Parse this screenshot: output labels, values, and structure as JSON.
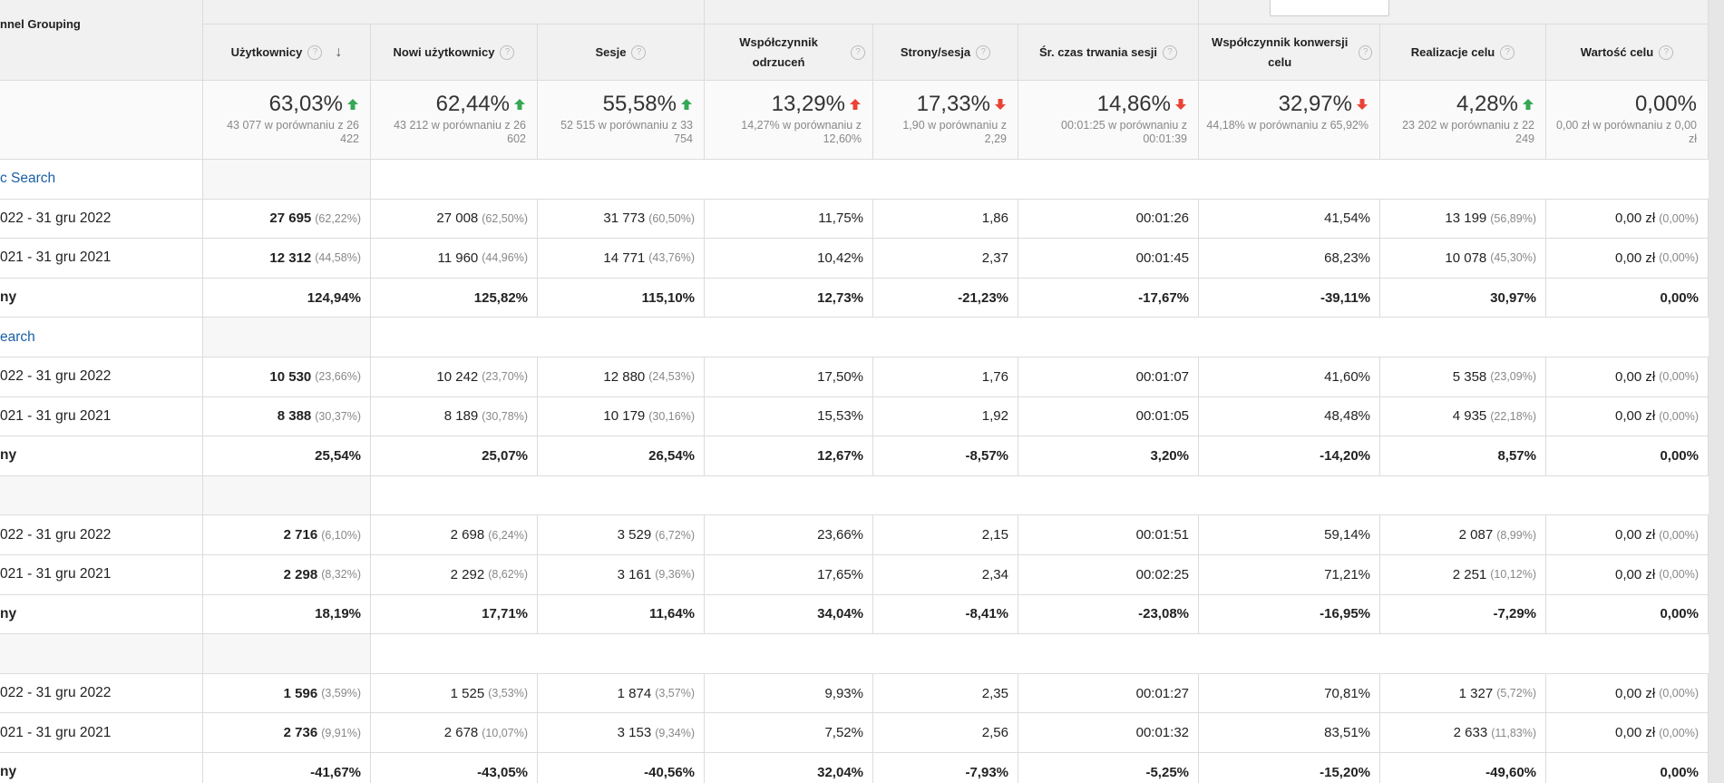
{
  "table": {
    "first_header": "nnel Grouping",
    "headers": [
      "Użytkownicy",
      "Nowi użytkownicy",
      "Sesje",
      "Współczynnik odrzuceń",
      "Strony/sesja",
      "Śr. czas trwania sesji",
      "Współczynnik konwersji celu",
      "Realizacje celu",
      "Wartość celu"
    ],
    "summary": [
      {
        "main": "63,03%",
        "arrow": "up",
        "arrow_color": "#34a853",
        "sub": "43 077 w porównaniu z 26 422"
      },
      {
        "main": "62,44%",
        "arrow": "up",
        "arrow_color": "#34a853",
        "sub": "43 212 w porównaniu z 26 602"
      },
      {
        "main": "55,58%",
        "arrow": "up",
        "arrow_color": "#34a853",
        "sub": "52 515 w porównaniu z 33 754"
      },
      {
        "main": "13,29%",
        "arrow": "up",
        "arrow_color": "#ea4335",
        "sub": "14,27% w porównaniu z 12,60%"
      },
      {
        "main": "17,33%",
        "arrow": "down",
        "arrow_color": "#ea4335",
        "sub": "1,90 w porównaniu z 2,29"
      },
      {
        "main": "14,86%",
        "arrow": "down",
        "arrow_color": "#ea4335",
        "sub": "00:01:25 w porównaniu z 00:01:39"
      },
      {
        "main": "32,97%",
        "arrow": "down",
        "arrow_color": "#ea4335",
        "sub": "44,18% w porównaniu z 65,92%"
      },
      {
        "main": "4,28%",
        "arrow": "up",
        "arrow_color": "#34a853",
        "sub": "23 202 w porównaniu z 22 249"
      },
      {
        "main": "0,00%",
        "sub": "0,00 zł w porównaniu z 0,00 zł"
      }
    ],
    "rows": [
      {
        "group": "c Search"
      },
      {
        "label": "022 - 31 gru 2022",
        "cells": [
          [
            "27 695",
            "(62,22%)"
          ],
          [
            "27 008",
            "(62,50%)"
          ],
          [
            "31 773",
            "(60,50%)"
          ],
          "11,75%",
          "1,86",
          "00:01:26",
          "41,54%",
          [
            "13 199",
            "(56,89%)"
          ],
          [
            "0,00 zł",
            "(0,00%)"
          ]
        ]
      },
      {
        "label": "021 - 31 gru 2021",
        "cells": [
          [
            "12 312",
            "(44,58%)"
          ],
          [
            "11 960",
            "(44,96%)"
          ],
          [
            "14 771",
            "(43,76%)"
          ],
          "10,42%",
          "2,37",
          "00:01:45",
          "68,23%",
          [
            "10 078",
            "(45,30%)"
          ],
          [
            "0,00 zł",
            "(0,00%)"
          ]
        ]
      },
      {
        "label": "ny",
        "bold": true,
        "cells": [
          "124,94%",
          "125,82%",
          "115,10%",
          "12,73%",
          "-21,23%",
          "-17,67%",
          "-39,11%",
          "30,97%",
          "0,00%"
        ]
      },
      {
        "group": "earch"
      },
      {
        "label": "022 - 31 gru 2022",
        "cells": [
          [
            "10 530",
            "(23,66%)"
          ],
          [
            "10 242",
            "(23,70%)"
          ],
          [
            "12 880",
            "(24,53%)"
          ],
          "17,50%",
          "1,76",
          "00:01:07",
          "41,60%",
          [
            "5 358",
            "(23,09%)"
          ],
          [
            "0,00 zł",
            "(0,00%)"
          ]
        ]
      },
      {
        "label": "021 - 31 gru 2021",
        "cells": [
          [
            "8 388",
            "(30,37%)"
          ],
          [
            "8 189",
            "(30,78%)"
          ],
          [
            "10 179",
            "(30,16%)"
          ],
          "15,53%",
          "1,92",
          "00:01:05",
          "48,48%",
          [
            "4 935",
            "(22,18%)"
          ],
          [
            "0,00 zł",
            "(0,00%)"
          ]
        ]
      },
      {
        "label": "ny",
        "bold": true,
        "cells": [
          "25,54%",
          "25,07%",
          "26,54%",
          "12,67%",
          "-8,57%",
          "3,20%",
          "-14,20%",
          "8,57%",
          "0,00%"
        ]
      },
      {},
      {
        "label": "022 - 31 gru 2022",
        "cells": [
          [
            "2 716",
            "(6,10%)"
          ],
          [
            "2 698",
            "(6,24%)"
          ],
          [
            "3 529",
            "(6,72%)"
          ],
          "23,66%",
          "2,15",
          "00:01:51",
          "59,14%",
          [
            "2 087",
            "(8,99%)"
          ],
          [
            "0,00 zł",
            "(0,00%)"
          ]
        ]
      },
      {
        "label": "021 - 31 gru 2021",
        "cells": [
          [
            "2 298",
            "(8,32%)"
          ],
          [
            "2 292",
            "(8,62%)"
          ],
          [
            "3 161",
            "(9,36%)"
          ],
          "17,65%",
          "2,34",
          "00:02:25",
          "71,21%",
          [
            "2 251",
            "(10,12%)"
          ],
          [
            "0,00 zł",
            "(0,00%)"
          ]
        ]
      },
      {
        "label": "ny",
        "bold": true,
        "cells": [
          "18,19%",
          "17,71%",
          "11,64%",
          "34,04%",
          "-8,41%",
          "-23,08%",
          "-16,95%",
          "-7,29%",
          "0,00%"
        ]
      },
      {},
      {
        "label": "022 - 31 gru 2022",
        "cells": [
          [
            "1 596",
            "(3,59%)"
          ],
          [
            "1 525",
            "(3,53%)"
          ],
          [
            "1 874",
            "(3,57%)"
          ],
          "9,93%",
          "2,35",
          "00:01:27",
          "70,81%",
          [
            "1 327",
            "(5,72%)"
          ],
          [
            "0,00 zł",
            "(0,00%)"
          ]
        ]
      },
      {
        "label": "021 - 31 gru 2021",
        "cells": [
          [
            "2 736",
            "(9,91%)"
          ],
          [
            "2 678",
            "(10,07%)"
          ],
          [
            "3 153",
            "(9,34%)"
          ],
          "7,52%",
          "2,56",
          "00:01:32",
          "83,51%",
          [
            "2 633",
            "(11,83%)"
          ],
          [
            "0,00 zł",
            "(0,00%)"
          ]
        ]
      },
      {
        "label": "ny",
        "bold": true,
        "cells": [
          "-41,67%",
          "-43,05%",
          "-40,56%",
          "32,04%",
          "-7,93%",
          "-5,25%",
          "-15,20%",
          "-49,60%",
          "0,00%"
        ]
      }
    ]
  }
}
